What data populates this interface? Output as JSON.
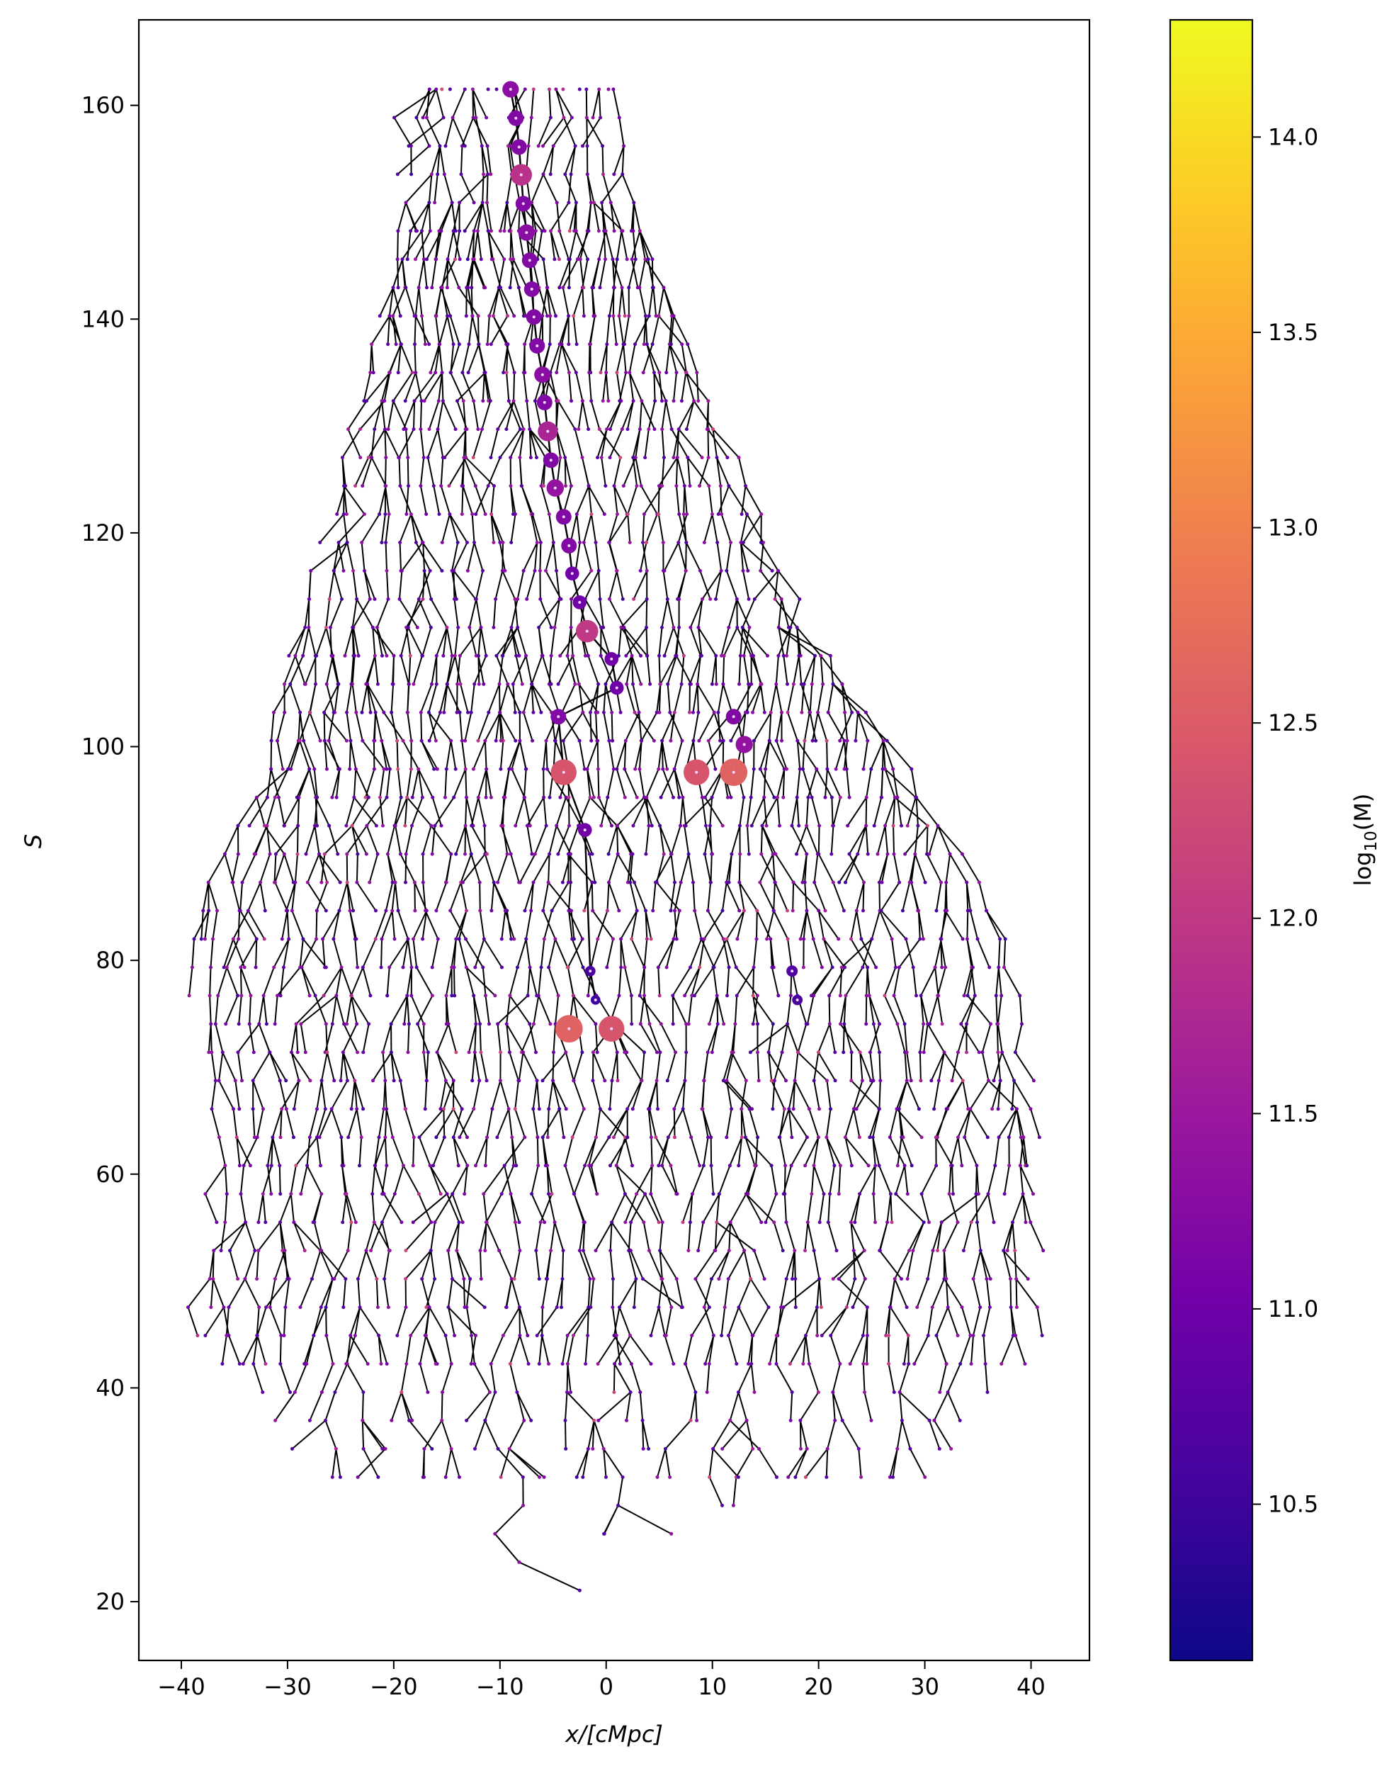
{
  "chart_data": {
    "type": "scatter",
    "subtype": "merger-tree",
    "xlabel": "x/[cMpc]",
    "ylabel": "S",
    "xlim": [
      -44,
      45.5
    ],
    "ylim": [
      14.5,
      168
    ],
    "xticks": [
      -40,
      -30,
      -20,
      -10,
      0,
      10,
      20,
      30,
      40
    ],
    "xtick_labels": [
      "−40",
      "−30",
      "−20",
      "−10",
      "0",
      "10",
      "20",
      "30",
      "40"
    ],
    "yticks": [
      20,
      40,
      60,
      80,
      100,
      120,
      140,
      160
    ],
    "ytick_labels": [
      "20",
      "40",
      "60",
      "80",
      "100",
      "120",
      "140",
      "160"
    ],
    "grid": false,
    "legend": "none",
    "line_color": "#000000",
    "colorbar": {
      "label": "log10(M)",
      "label_main": "log",
      "label_sub": "10",
      "label_rest": "(M)",
      "range": [
        10.1,
        14.3
      ],
      "ticks": [
        10.5,
        11.0,
        11.5,
        12.0,
        12.5,
        13.0,
        13.5,
        14.0
      ],
      "tick_labels": [
        "10.5",
        "11.0",
        "11.5",
        "12.0",
        "12.5",
        "13.0",
        "13.5",
        "14.0"
      ],
      "colormap": "plasma",
      "colormap_stops": [
        "#0d0887",
        "#46039f",
        "#7201a8",
        "#9c179e",
        "#bd3786",
        "#d8576b",
        "#ed7953",
        "#fb9f3a",
        "#fdca26",
        "#f0f921"
      ]
    },
    "snapshot_spacing": 2.65,
    "envelope": [
      {
        "s": 21.5,
        "left": -3.5,
        "right": -2.5
      },
      {
        "s": 32,
        "left": -27.5,
        "right": 32
      },
      {
        "s": 45,
        "left": -39.5,
        "right": 41
      },
      {
        "s": 63.5,
        "left": -36.5,
        "right": 41
      },
      {
        "s": 82,
        "left": -40,
        "right": 38
      },
      {
        "s": 98,
        "left": -32,
        "right": 28.5
      },
      {
        "s": 110,
        "left": -30,
        "right": 20
      },
      {
        "s": 130,
        "left": -24,
        "right": 11
      },
      {
        "s": 150,
        "left": -19,
        "right": 3
      },
      {
        "s": 159,
        "left": -20,
        "right": 1
      },
      {
        "s": 161.5,
        "left": -17.5,
        "right": 1.5
      }
    ],
    "main_branch": [
      {
        "x": -9.0,
        "s": 161.5,
        "logm": 11.3
      },
      {
        "x": -8.5,
        "s": 158.8,
        "logm": 11.2
      },
      {
        "x": -8.2,
        "s": 156.1,
        "logm": 11.2
      },
      {
        "x": -8.0,
        "s": 153.5,
        "logm": 11.9
      },
      {
        "x": -7.8,
        "s": 150.8,
        "logm": 11.2
      },
      {
        "x": -7.5,
        "s": 148.1,
        "logm": 11.3
      },
      {
        "x": -7.2,
        "s": 145.5,
        "logm": 11.2
      },
      {
        "x": -7.0,
        "s": 142.8,
        "logm": 11.2
      },
      {
        "x": -6.8,
        "s": 140.2,
        "logm": 11.2
      },
      {
        "x": -6.5,
        "s": 137.5,
        "logm": 11.2
      },
      {
        "x": -6.0,
        "s": 134.8,
        "logm": 11.3
      },
      {
        "x": -5.8,
        "s": 132.2,
        "logm": 11.2
      },
      {
        "x": -5.5,
        "s": 129.5,
        "logm": 11.7
      },
      {
        "x": -5.2,
        "s": 126.8,
        "logm": 11.2
      },
      {
        "x": -4.8,
        "s": 124.2,
        "logm": 11.4
      },
      {
        "x": -4.0,
        "s": 121.5,
        "logm": 11.2
      },
      {
        "x": -3.5,
        "s": 118.8,
        "logm": 11.2
      },
      {
        "x": -3.2,
        "s": 116.2,
        "logm": 11.0
      },
      {
        "x": -2.5,
        "s": 113.5,
        "logm": 11.0
      },
      {
        "x": -1.8,
        "s": 110.8,
        "logm": 12.0
      },
      {
        "x": 0.5,
        "s": 108.2,
        "logm": 11.0
      },
      {
        "x": 1.0,
        "s": 105.5,
        "logm": 11.0
      },
      {
        "x": -4.5,
        "s": 102.8,
        "logm": 11.2
      },
      {
        "x": -4.0,
        "s": 97.6,
        "logm": 12.4
      },
      {
        "x": -2.0,
        "s": 92.2,
        "logm": 11.0
      },
      {
        "x": -1.5,
        "s": 79.0,
        "logm": 10.6
      },
      {
        "x": -1.0,
        "s": 76.3,
        "logm": 10.5
      }
    ],
    "side_halos": [
      {
        "x": 12.0,
        "s": 102.8,
        "logm": 11.2
      },
      {
        "x": 13.0,
        "s": 100.2,
        "logm": 11.4
      },
      {
        "x": 12.0,
        "s": 97.6,
        "logm": 12.6
      },
      {
        "x": 8.5,
        "s": 97.6,
        "logm": 12.4
      },
      {
        "x": 17.5,
        "s": 79.0,
        "logm": 10.7
      },
      {
        "x": 18.0,
        "s": 76.3,
        "logm": 10.6
      },
      {
        "x": 0.5,
        "s": 73.6,
        "logm": 12.4
      },
      {
        "x": -3.5,
        "s": 73.6,
        "logm": 12.6
      }
    ]
  }
}
